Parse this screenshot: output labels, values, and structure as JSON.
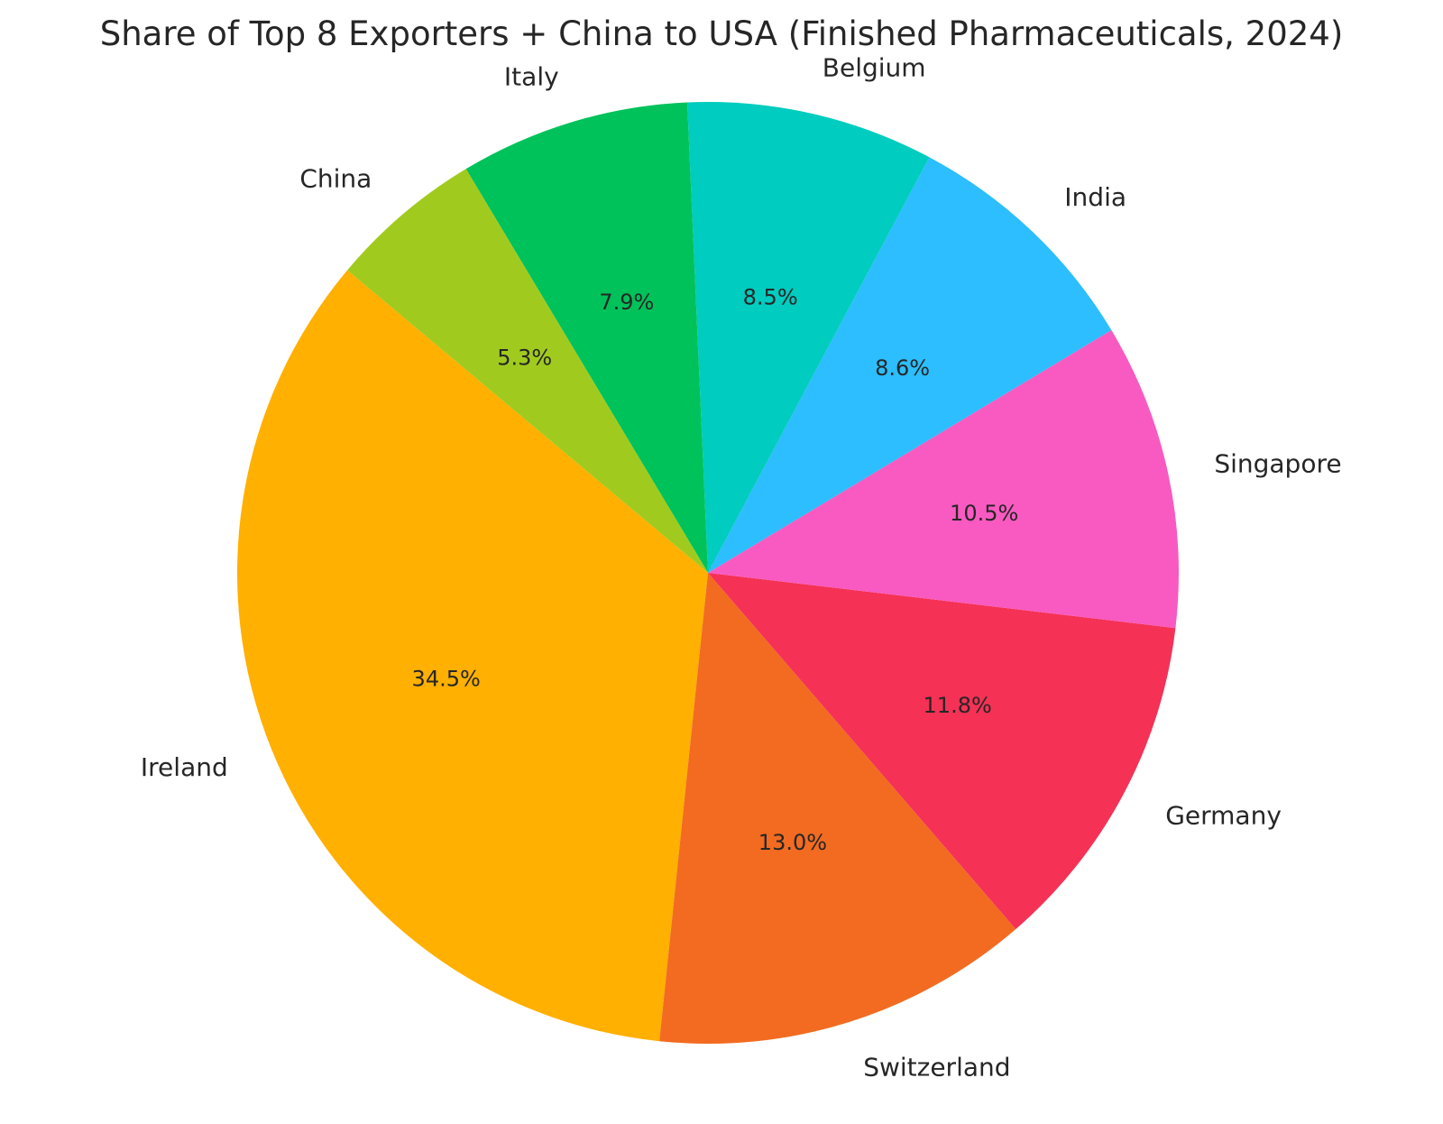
{
  "chart_data": {
    "type": "pie",
    "title": "Share of Top 8 Exporters + China to USA (Finished Pharmaceuticals, 2024)",
    "categories": [
      "Ireland",
      "Switzerland",
      "Germany",
      "Singapore",
      "India",
      "Belgium",
      "Italy",
      "China"
    ],
    "values": [
      34.5,
      13.0,
      11.8,
      10.5,
      8.6,
      8.5,
      7.9,
      5.3
    ],
    "labels": [
      "34.5%",
      "13.0%",
      "11.8%",
      "10.5%",
      "8.6%",
      "8.5%",
      "7.9%",
      "5.3%"
    ],
    "colors": [
      "#FFB000",
      "#F26B21",
      "#F53155",
      "#F85AC1",
      "#2CBEFF",
      "#00CCBF",
      "#00C25A",
      "#A0CB1E"
    ],
    "start_angle_deg": 140,
    "direction": "counterclockwise",
    "legend": "none"
  }
}
